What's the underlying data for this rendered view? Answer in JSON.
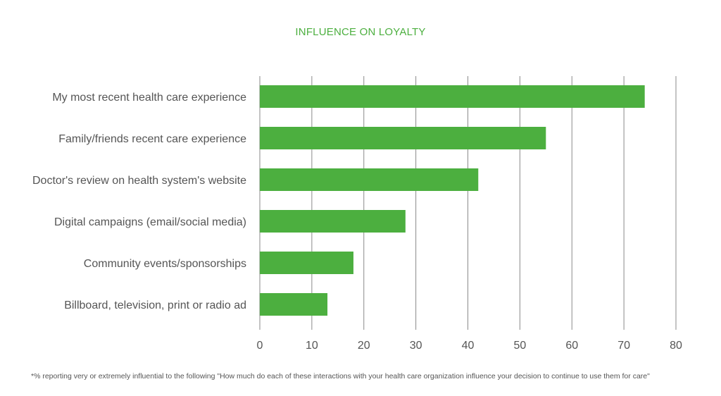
{
  "chart_data": {
    "type": "bar",
    "orientation": "horizontal",
    "title": "INFLUENCE ON LOYALTY",
    "categories": [
      "My most recent health care experience",
      "Family/friends recent care experience",
      "Doctor's review on health system's website",
      "Digital campaigns (email/social media)",
      "Community events/sponsorships",
      "Billboard, television, print or radio ad"
    ],
    "values": [
      74,
      55,
      42,
      28,
      18,
      13
    ],
    "xlim": [
      0,
      80
    ],
    "xticks": [
      0,
      10,
      20,
      30,
      40,
      50,
      60,
      70,
      80
    ],
    "grid": true,
    "legend": "none",
    "bar_color": "#4caf3f",
    "footnote": "*% reporting very or extremely influential to the following \"How much do each of these interactions with your health care organization influence your decision to continue to use them for care\""
  }
}
